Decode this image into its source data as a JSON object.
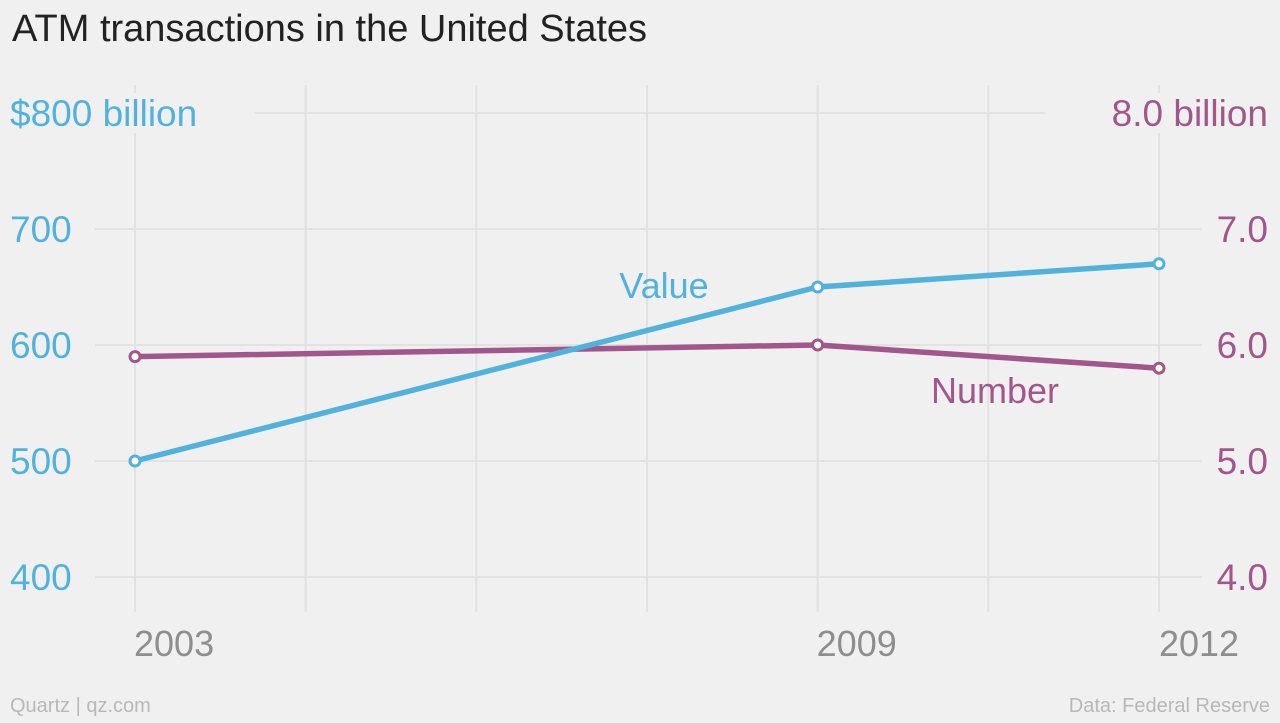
{
  "title": "ATM transactions in the United States",
  "source": "Data: Federal Reserve",
  "credit": "Quartz | qz.com",
  "colors": {
    "value": "#51b2db",
    "number": "#a1578b",
    "grid": "#e2e2e2",
    "xtick": "#8e8e8e",
    "background": "#f1f0f0"
  },
  "chart_data": {
    "type": "line",
    "x": [
      2003,
      2009,
      2012
    ],
    "xlim": [
      2003,
      2012
    ],
    "x_tick_labels": [
      "2003",
      "2009",
      "2012"
    ],
    "series": [
      {
        "name": "Value",
        "axis": "left",
        "values": [
          500,
          650,
          670
        ]
      },
      {
        "name": "Number",
        "axis": "right",
        "values": [
          5.9,
          6.0,
          5.8
        ]
      }
    ],
    "y_left": {
      "lim": [
        400,
        800
      ],
      "ticks": [
        400,
        500,
        600,
        700,
        800
      ],
      "tick_labels": [
        "400",
        "500",
        "600",
        "700",
        "$800 billion"
      ]
    },
    "y_right": {
      "lim": [
        4.0,
        8.0
      ],
      "ticks": [
        4.0,
        5.0,
        6.0,
        7.0,
        8.0
      ],
      "tick_labels": [
        "4.0",
        "5.0",
        "6.0",
        "7.0",
        "8.0 billion"
      ]
    },
    "grid": true
  }
}
